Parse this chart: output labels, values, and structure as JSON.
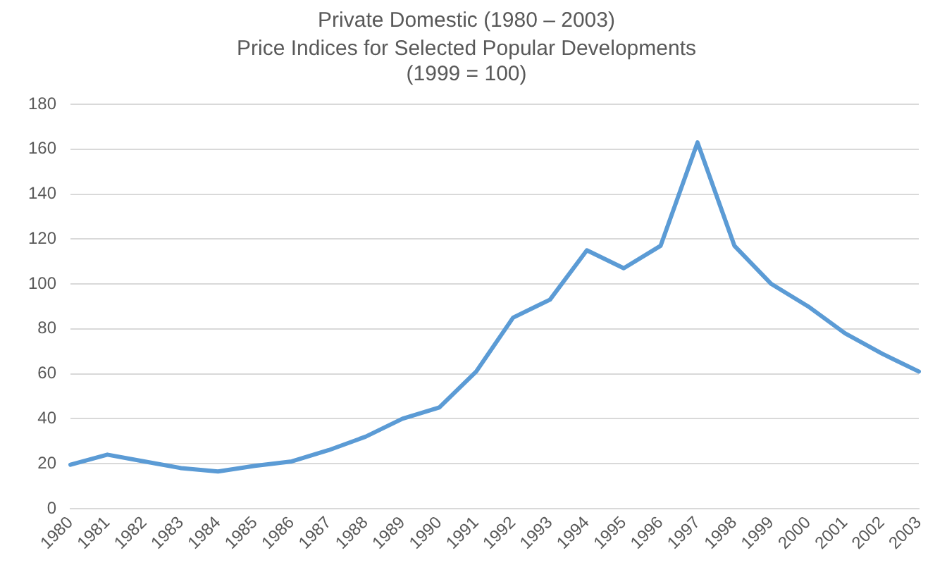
{
  "chart_data": {
    "type": "line",
    "title": "Private Domestic (1980 – 2003)",
    "subtitle": "Price Indices for Selected Popular Developments\n(1999 = 100)",
    "categories": [
      "1980",
      "1981",
      "1982",
      "1983",
      "1984",
      "1985",
      "1986",
      "1987",
      "1988",
      "1989",
      "1990",
      "1991",
      "1992",
      "1993",
      "1994",
      "1995",
      "1996",
      "1997",
      "1998",
      "1999",
      "2000",
      "2001",
      "2002",
      "2003"
    ],
    "series": [
      {
        "color": "#5b9bd5",
        "values": [
          19.5,
          24,
          21,
          18,
          16.5,
          19,
          21,
          26,
          32,
          40,
          45,
          61,
          85,
          93,
          115,
          107,
          117,
          163,
          117,
          100,
          90,
          78,
          69,
          61
        ]
      }
    ],
    "ylim": [
      0,
      180
    ],
    "yticks": [
      0,
      20,
      40,
      60,
      80,
      100,
      120,
      140,
      160,
      180
    ],
    "grid": "y",
    "legend": false,
    "marker": "none",
    "line_style": "solid"
  }
}
